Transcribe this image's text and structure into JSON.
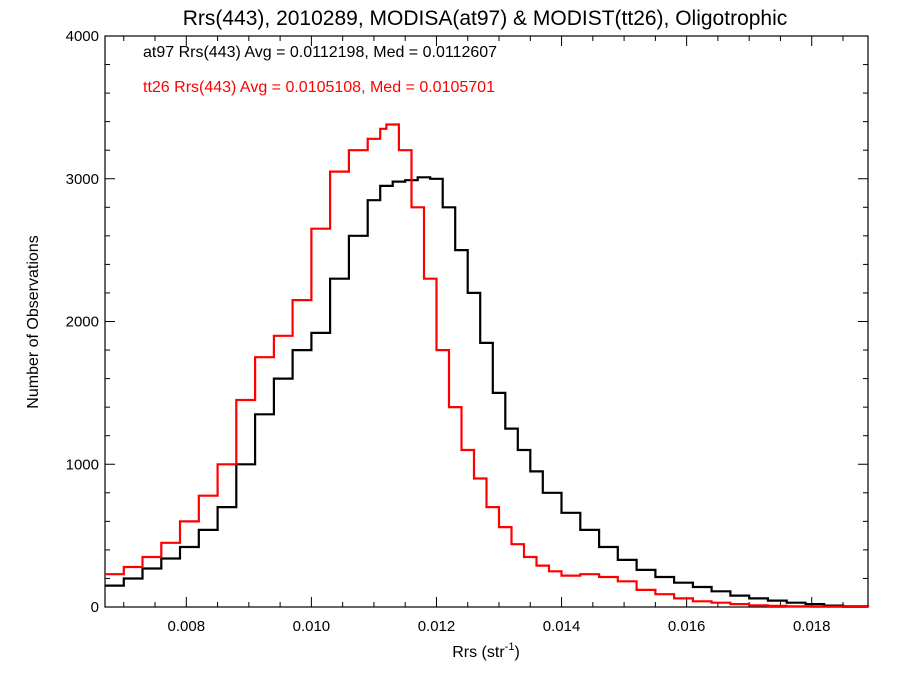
{
  "chart_data": {
    "type": "line",
    "title": "Rrs(443), 2010289, MODISA(at97) & MODIST(tt26), Oligotrophic",
    "xlabel_main": "Rrs (str",
    "xlabel_sup": "-1",
    "xlabel_close": ")",
    "ylabel": "Number of Observations",
    "xlim": [
      0.0067,
      0.0189
    ],
    "ylim": [
      0,
      4000
    ],
    "xticks": [
      0.008,
      0.01,
      0.012,
      0.014,
      0.016,
      0.018
    ],
    "xtick_labels": [
      "0.008",
      "0.010",
      "0.012",
      "0.014",
      "0.016",
      "0.018"
    ],
    "yticks": [
      0,
      1000,
      2000,
      3000,
      4000
    ],
    "ytick_labels": [
      "0",
      "1000",
      "2000",
      "3000",
      "4000"
    ],
    "grid": false,
    "legend_position": "top-left",
    "series": [
      {
        "name": "at97",
        "color": "#000000",
        "legend_label": "at97 Rrs(443) Avg = 0.0112198, Med = 0.0112607",
        "x": [
          0.0067,
          0.007,
          0.0073,
          0.0076,
          0.0079,
          0.0082,
          0.0085,
          0.0088,
          0.0091,
          0.0094,
          0.0097,
          0.01,
          0.0103,
          0.0106,
          0.0109,
          0.0111,
          0.0113,
          0.0115,
          0.0117,
          0.0119,
          0.0121,
          0.0123,
          0.0125,
          0.0127,
          0.0129,
          0.0131,
          0.0133,
          0.0135,
          0.0137,
          0.014,
          0.0143,
          0.0146,
          0.0149,
          0.0152,
          0.0155,
          0.0158,
          0.0161,
          0.0164,
          0.0167,
          0.017,
          0.0173,
          0.0176,
          0.0179,
          0.0182,
          0.0185,
          0.0189
        ],
        "y": [
          150,
          200,
          270,
          340,
          420,
          540,
          700,
          1000,
          1350,
          1600,
          1800,
          1920,
          2300,
          2600,
          2850,
          2950,
          2980,
          2990,
          3010,
          3000,
          2800,
          2500,
          2200,
          1850,
          1500,
          1250,
          1100,
          950,
          800,
          660,
          540,
          420,
          330,
          260,
          210,
          170,
          140,
          110,
          80,
          60,
          45,
          30,
          20,
          10,
          5,
          0
        ]
      },
      {
        "name": "tt26",
        "color": "#ff0000",
        "legend_label": "tt26 Rrs(443) Avg = 0.0105108, Med = 0.0105701",
        "x": [
          0.0067,
          0.007,
          0.0073,
          0.0076,
          0.0079,
          0.0082,
          0.0085,
          0.0088,
          0.0091,
          0.0094,
          0.0097,
          0.01,
          0.0103,
          0.0106,
          0.0109,
          0.0111,
          0.0112,
          0.0114,
          0.0116,
          0.0118,
          0.012,
          0.0122,
          0.0124,
          0.0126,
          0.0128,
          0.013,
          0.0132,
          0.0134,
          0.0136,
          0.0138,
          0.014,
          0.0143,
          0.0146,
          0.0149,
          0.0152,
          0.0155,
          0.0158,
          0.0161,
          0.0164,
          0.0167,
          0.017,
          0.0173,
          0.0176,
          0.018,
          0.0185,
          0.0189
        ],
        "y": [
          230,
          280,
          350,
          450,
          600,
          780,
          1000,
          1450,
          1750,
          1900,
          2150,
          2650,
          3050,
          3200,
          3280,
          3350,
          3380,
          3200,
          2800,
          2300,
          1800,
          1400,
          1100,
          900,
          700,
          560,
          440,
          350,
          290,
          250,
          220,
          230,
          210,
          180,
          120,
          90,
          60,
          40,
          30,
          20,
          12,
          8,
          5,
          3,
          1,
          0
        ]
      }
    ]
  }
}
